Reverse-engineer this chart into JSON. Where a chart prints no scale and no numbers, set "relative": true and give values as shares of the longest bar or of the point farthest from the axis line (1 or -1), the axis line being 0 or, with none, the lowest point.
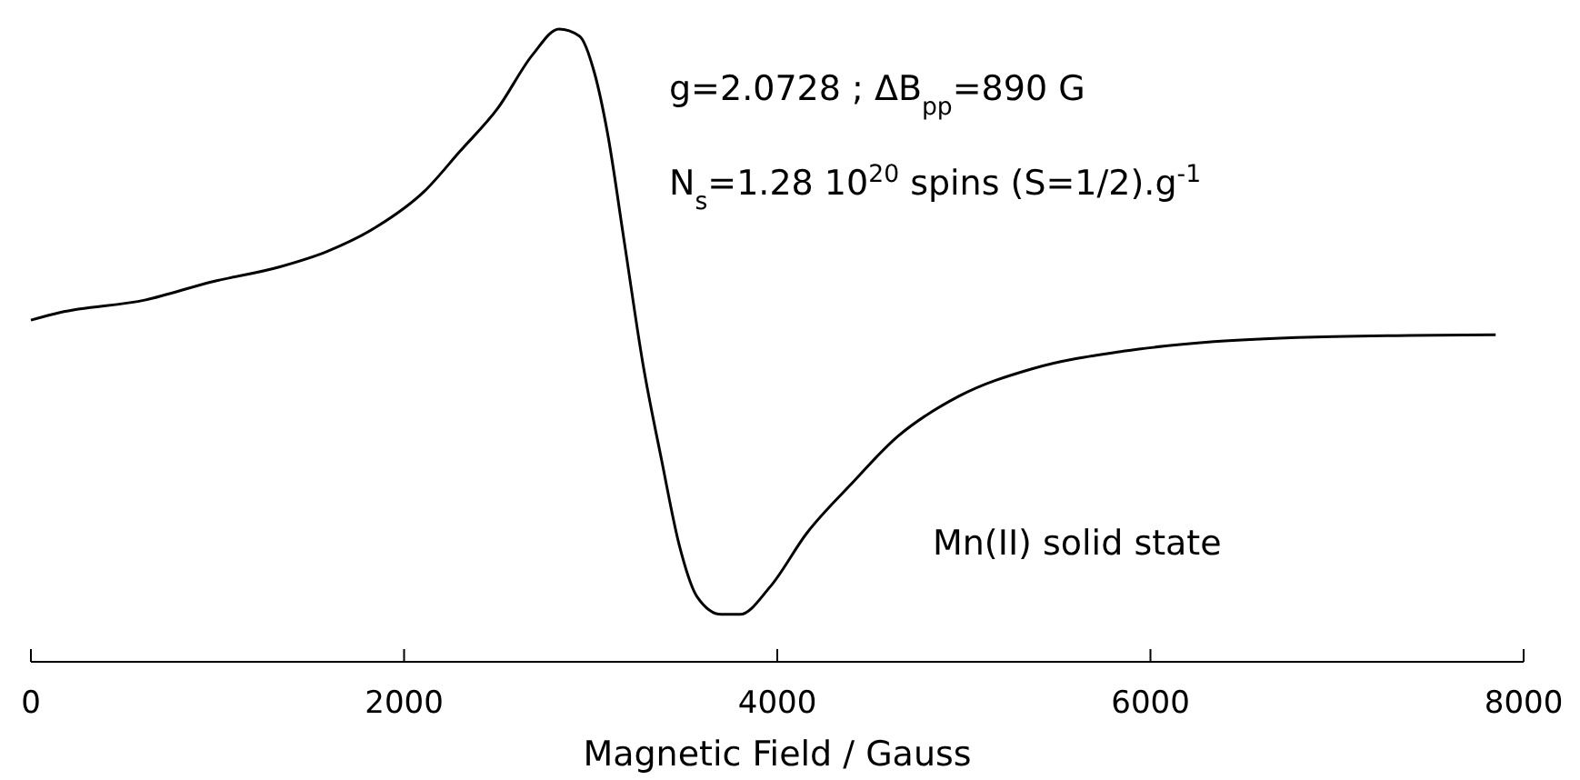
{
  "chart_data": {
    "type": "line",
    "relative": true,
    "xlabel": "Magnetic Field / Gauss",
    "xlim": [
      0,
      8000
    ],
    "xticks": [
      0,
      2000,
      4000,
      6000,
      8000
    ],
    "tick_labels": "x",
    "grid": false,
    "marker": "none",
    "line_style": "solid",
    "annotations": [
      "g=2.0728 ; ΔB$_{pp}$=890 G",
      "N$_{s}$=1.28 10$^{20}$ spins (S=1/2).g$^{-1}$",
      "Mn(II) solid state"
    ],
    "series": [
      {
        "color": "#000000",
        "x": [
          0,
          156,
          615,
          975,
          1330,
          1590,
          1850,
          2110,
          2300,
          2500,
          2690,
          2830,
          2940,
          3020,
          3090,
          3180,
          3280,
          3380,
          3475,
          3570,
          3700,
          3800,
          3960,
          4160,
          4390,
          4645,
          4975,
          5365,
          5855,
          6340,
          6985,
          7850
        ],
        "values": [
          0.54,
          0.552,
          0.572,
          0.601,
          0.624,
          0.649,
          0.687,
          0.744,
          0.807,
          0.874,
          0.96,
          1,
          0.989,
          0.931,
          0.836,
          0.664,
          0.471,
          0.319,
          0.184,
          0.103,
          0.075,
          0.075,
          0.118,
          0.204,
          0.279,
          0.356,
          0.42,
          0.463,
          0.491,
          0.506,
          0.514,
          0.517
        ]
      }
    ]
  }
}
